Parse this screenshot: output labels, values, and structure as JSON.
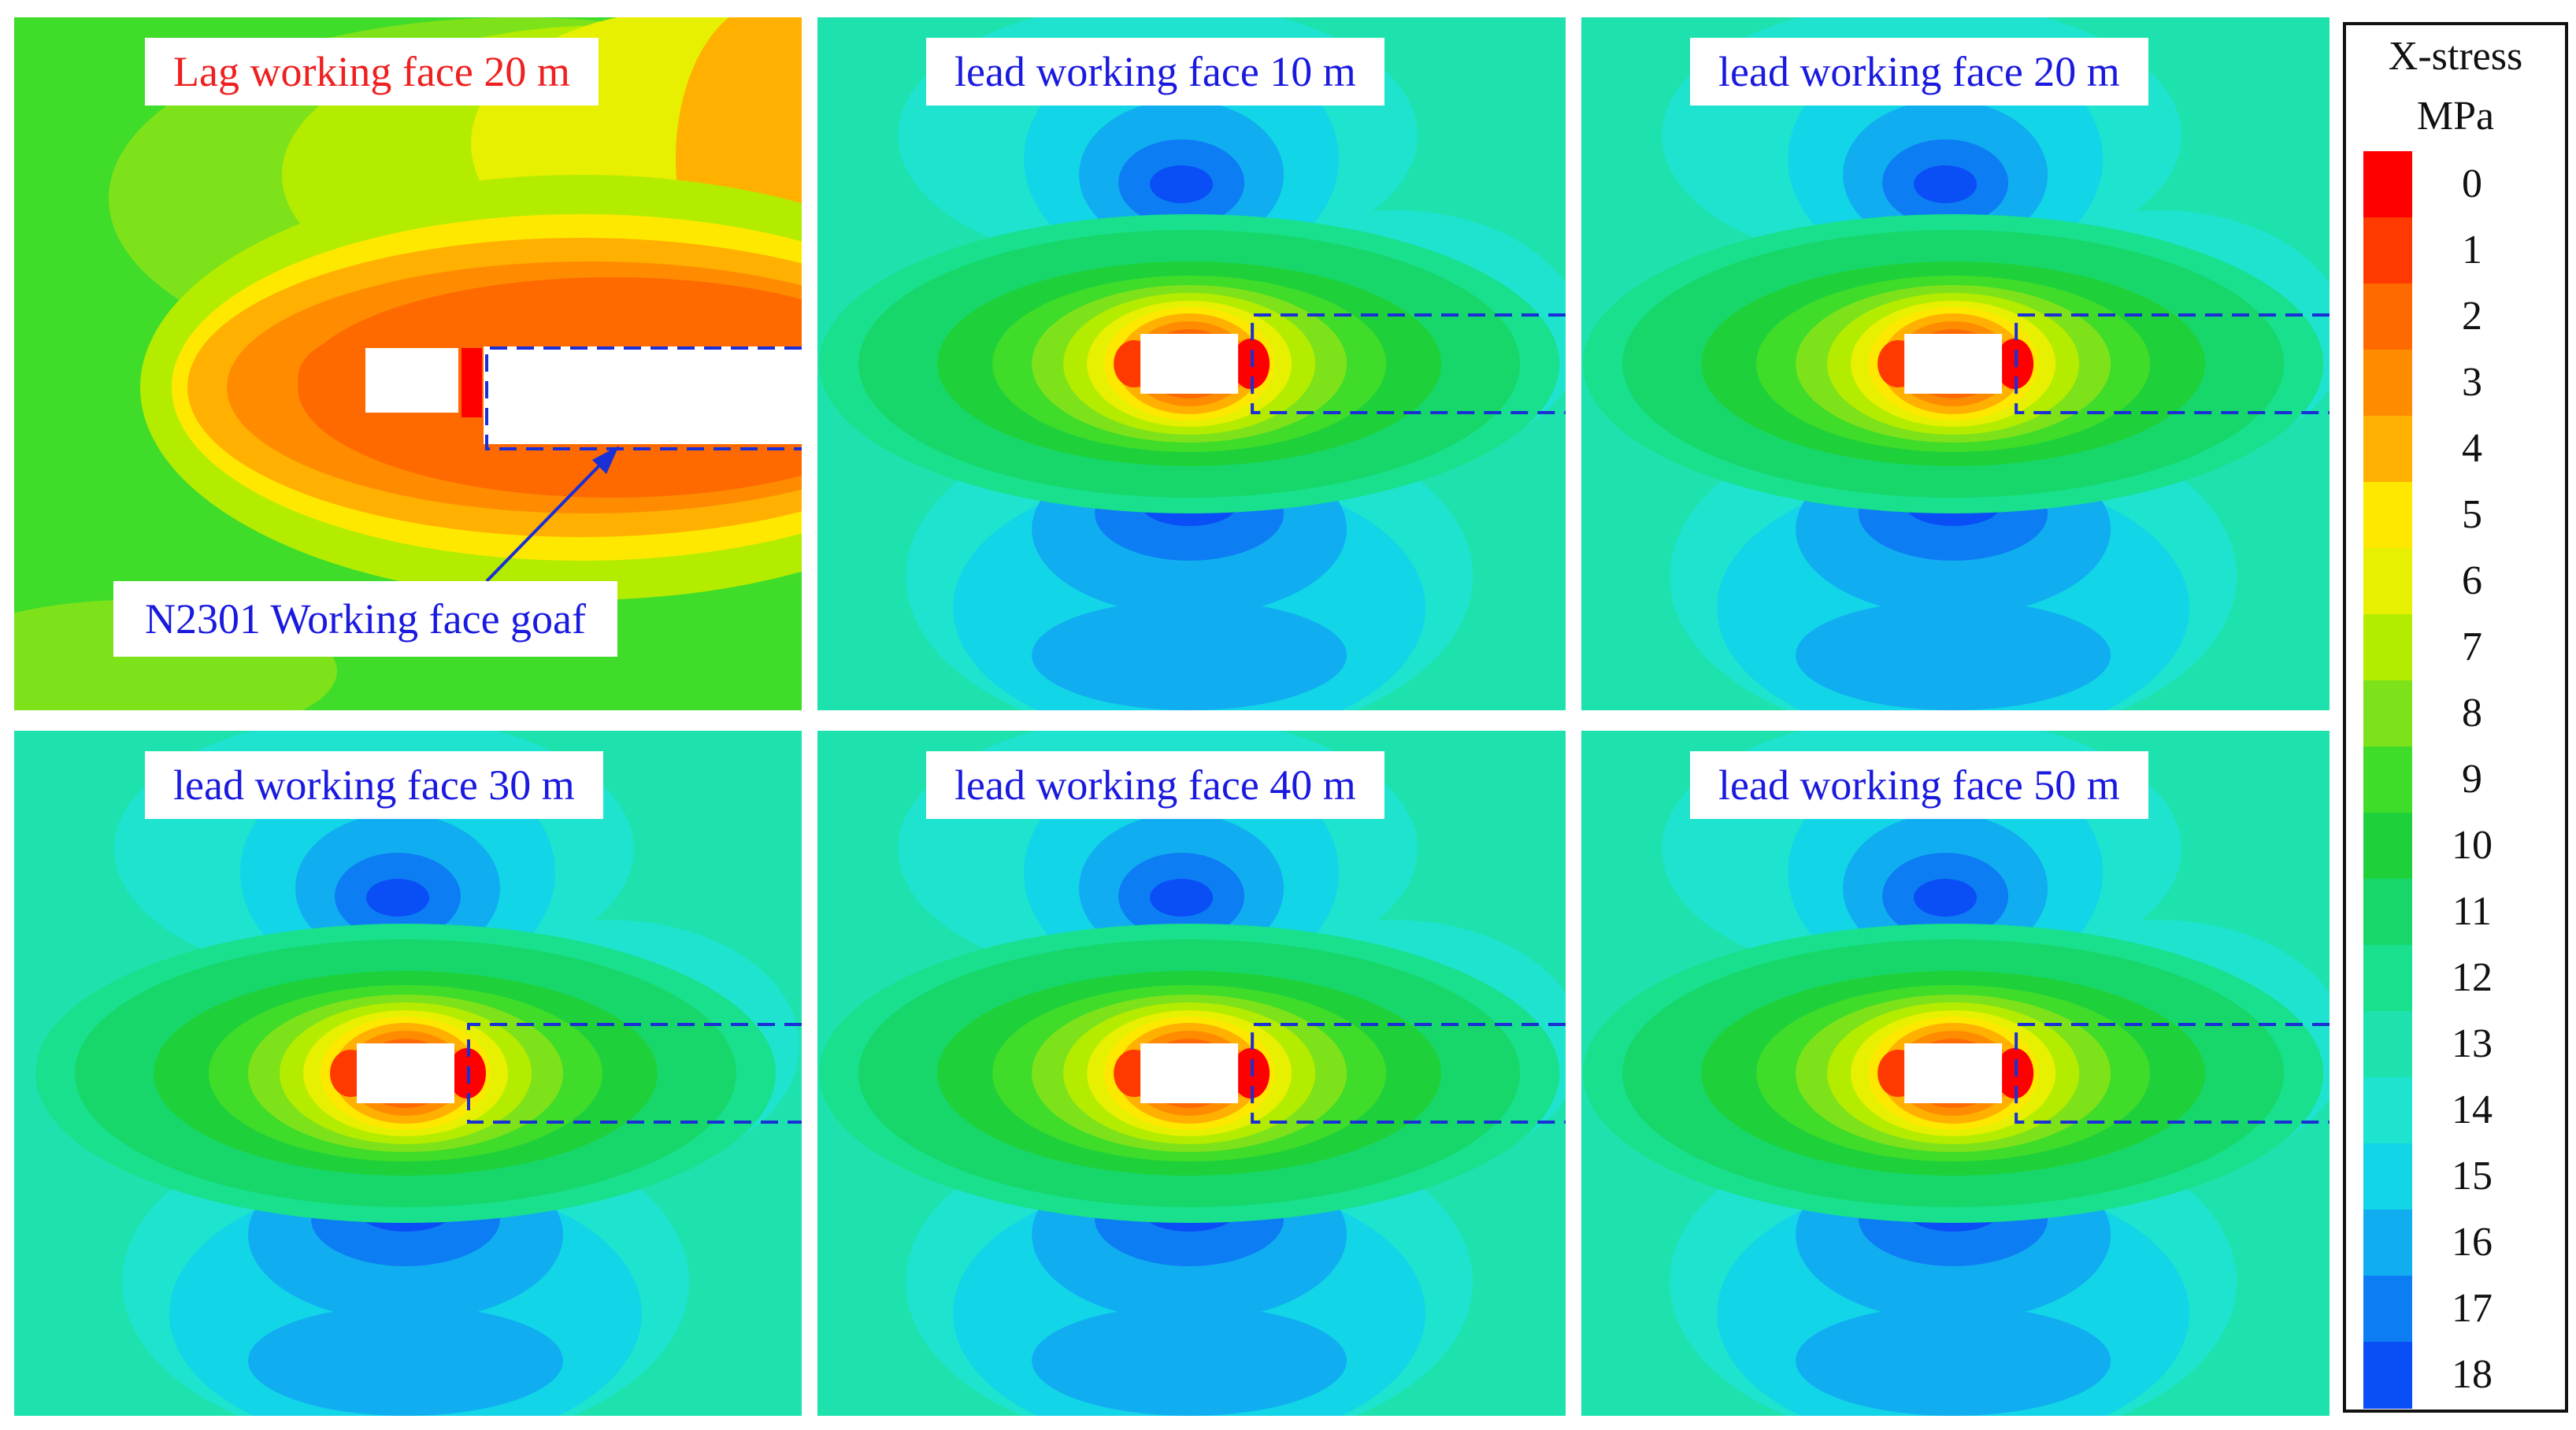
{
  "panels": [
    {
      "label": "Lag working face 20 m",
      "label_color": "red",
      "variant": "lag",
      "annotation": "N2301 Working face goaf"
    },
    {
      "label": "lead working face 10 m",
      "label_color": "blue",
      "variant": "lead"
    },
    {
      "label": "lead working face 20 m",
      "label_color": "blue",
      "variant": "lead"
    },
    {
      "label": "lead working face 30 m",
      "label_color": "blue",
      "variant": "lead"
    },
    {
      "label": "lead working face 40 m",
      "label_color": "blue",
      "variant": "lead"
    },
    {
      "label": "lead working face 50 m",
      "label_color": "blue",
      "variant": "lead"
    }
  ],
  "legend": {
    "title": "X-stress",
    "unit": "MPa",
    "ticks": [
      "0",
      "1",
      "2",
      "3",
      "4",
      "5",
      "6",
      "7",
      "8",
      "9",
      "10",
      "11",
      "12",
      "13",
      "14",
      "15",
      "16",
      "17",
      "18"
    ],
    "colors": [
      "#ff0000",
      "#ff3a00",
      "#ff6a00",
      "#ff8c00",
      "#ffb000",
      "#ffe800",
      "#e6f000",
      "#b4ec00",
      "#7ee21a",
      "#3fdc2a",
      "#1ed13a",
      "#17d76a",
      "#18e08c",
      "#1ee2ad",
      "#1ee3cf",
      "#12d5e7",
      "#10aef0",
      "#0d7df3",
      "#0a4ef6"
    ]
  }
}
